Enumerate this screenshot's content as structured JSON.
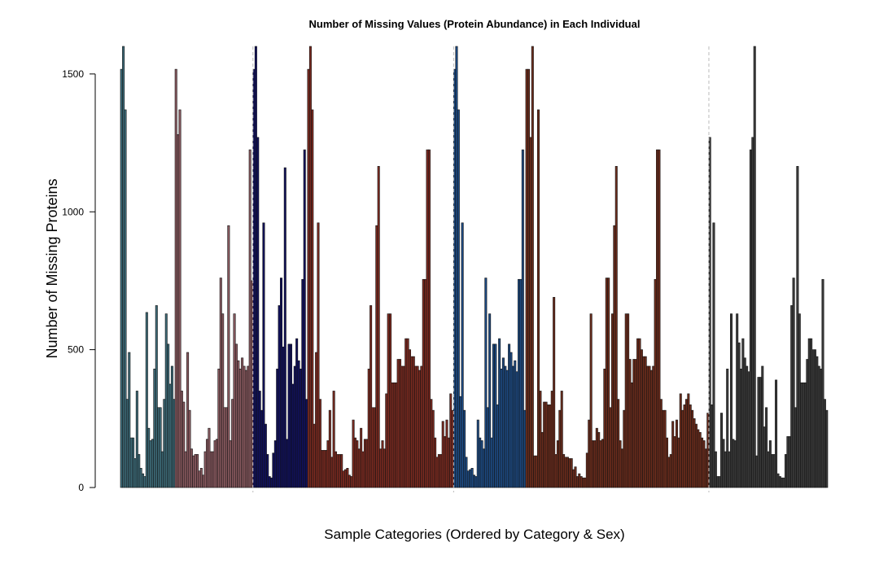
{
  "chart_data": {
    "type": "bar",
    "title": "Number of Missing Values (Protein Abundance) in Each Individual",
    "xlabel": "Sample Categories (Ordered by Category & Sex)",
    "ylabel": "Number of Missing Proteins",
    "ylim": [
      0,
      1600
    ],
    "yticks": [
      0,
      500,
      1000,
      1500
    ],
    "grid": false,
    "legend": "none",
    "separator_after_groups": [
      1,
      3,
      5
    ],
    "groups": [
      {
        "color": "#3d6b78",
        "values": [
          1517,
          1600,
          1370,
          320,
          490,
          180,
          180,
          105,
          350,
          120,
          70,
          50,
          40,
          635,
          215,
          170,
          175,
          430,
          660,
          290,
          290,
          130,
          320,
          630,
          520,
          375,
          440,
          320
        ]
      },
      {
        "color": "#8a5a60",
        "values": [
          1517,
          1280,
          1370,
          350,
          310,
          130,
          490,
          280,
          140,
          115,
          120,
          120,
          60,
          70,
          45,
          130,
          175,
          215,
          130,
          130,
          170,
          175,
          430,
          760,
          630,
          290,
          290,
          950,
          170,
          320,
          630,
          520,
          460,
          430,
          470,
          440,
          425,
          440,
          1225,
          750
        ]
      },
      {
        "color": "#10105c",
        "values": [
          1517,
          1600,
          1270,
          350,
          280,
          960,
          230,
          120,
          40,
          35,
          125,
          170,
          430,
          660,
          760,
          510,
          1160,
          175,
          520,
          520,
          375,
          440,
          540,
          460,
          430,
          755,
          1225,
          320
        ]
      },
      {
        "color": "#7a2a20",
        "values": [
          1517,
          1600,
          1370,
          230,
          490,
          960,
          320,
          135,
          135,
          135,
          170,
          280,
          110,
          350,
          130,
          120,
          120,
          120,
          60,
          65,
          70,
          45,
          40,
          245,
          180,
          170,
          140,
          215,
          130,
          175,
          175,
          430,
          660,
          290,
          290,
          950,
          1165,
          140,
          170,
          140,
          340,
          630,
          630,
          380,
          380,
          380,
          465,
          465,
          440,
          440,
          540,
          540,
          500,
          475,
          475,
          440,
          440,
          425,
          440,
          755,
          755,
          1225,
          1225,
          320,
          280,
          180,
          110,
          120,
          120,
          240,
          185,
          245,
          180,
          340,
          280
        ]
      },
      {
        "color": "#1d4a82",
        "values": [
          1517,
          1600,
          1370,
          330,
          960,
          280,
          110,
          60,
          65,
          70,
          45,
          40,
          245,
          180,
          170,
          140,
          760,
          290,
          630,
          180,
          520,
          520,
          300,
          540,
          430,
          470,
          440,
          425,
          520,
          490,
          440,
          460,
          420,
          755,
          755,
          1225,
          280
        ]
      },
      {
        "color": "#6b2c1c",
        "values": [
          1517,
          1517,
          1270,
          1600,
          115,
          115,
          1370,
          350,
          200,
          310,
          310,
          300,
          300,
          350,
          690,
          120,
          170,
          280,
          350,
          120,
          110,
          110,
          105,
          105,
          65,
          75,
          40,
          50,
          40,
          35,
          35,
          125,
          245,
          630,
          170,
          170,
          215,
          200,
          170,
          175,
          430,
          760,
          760,
          290,
          630,
          950,
          1165,
          320,
          170,
          140,
          280,
          630,
          630,
          465,
          380,
          465,
          465,
          540,
          540,
          500,
          475,
          475,
          440,
          440,
          425,
          440,
          755,
          1225,
          1225,
          320,
          280,
          280,
          180,
          110,
          120,
          240,
          185,
          245,
          180,
          340,
          280,
          300,
          320,
          340,
          300,
          280,
          250,
          230,
          210,
          200,
          180,
          170,
          140,
          270
        ]
      },
      {
        "color": "#3a3a3a",
        "values": [
          1270,
          300,
          960,
          130,
          40,
          40,
          270,
          175,
          130,
          430,
          130,
          630,
          175,
          170,
          630,
          525,
          430,
          540,
          470,
          440,
          420,
          1225,
          1270,
          1600,
          115,
          400,
          400,
          440,
          220,
          290,
          130,
          170,
          120,
          120,
          390,
          50,
          40,
          35,
          35,
          120,
          185,
          185,
          660,
          760,
          290,
          1165,
          630,
          380,
          380,
          380,
          465,
          540,
          540,
          500,
          500,
          475,
          440,
          430,
          755,
          320,
          280
        ]
      }
    ]
  }
}
